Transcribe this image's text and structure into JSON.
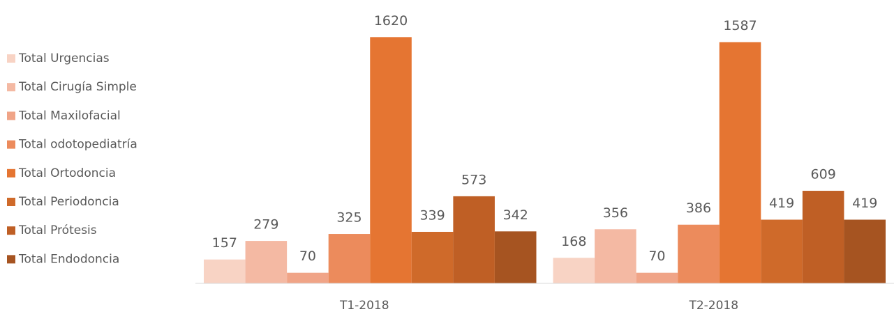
{
  "chart_data": {
    "type": "bar",
    "categories": [
      "T1-2018",
      "T2-2018"
    ],
    "series": [
      {
        "name": "Total Urgencias",
        "color": "#f8d3c4",
        "values": [
          157,
          168
        ]
      },
      {
        "name": "Total Cirugía Simple",
        "color": "#f4b9a3",
        "values": [
          279,
          356
        ]
      },
      {
        "name": "Total Maxilofacial",
        "color": "#f0a487",
        "values": [
          70,
          70
        ]
      },
      {
        "name": "Total odotopediatría",
        "color": "#ec8b5c",
        "values": [
          325,
          386
        ]
      },
      {
        "name": "Total Ortodoncia",
        "color": "#e57532",
        "values": [
          1620,
          1587
        ]
      },
      {
        "name": "Total Periodoncia",
        "color": "#cf6a2a",
        "values": [
          339,
          419
        ]
      },
      {
        "name": "Total Prótesis",
        "color": "#bf5f25",
        "values": [
          573,
          609
        ]
      },
      {
        "name": "Total Endodoncia",
        "color": "#a65421",
        "values": [
          342,
          419
        ]
      }
    ],
    "ylim": [
      0,
      1800
    ],
    "legend": "left"
  }
}
